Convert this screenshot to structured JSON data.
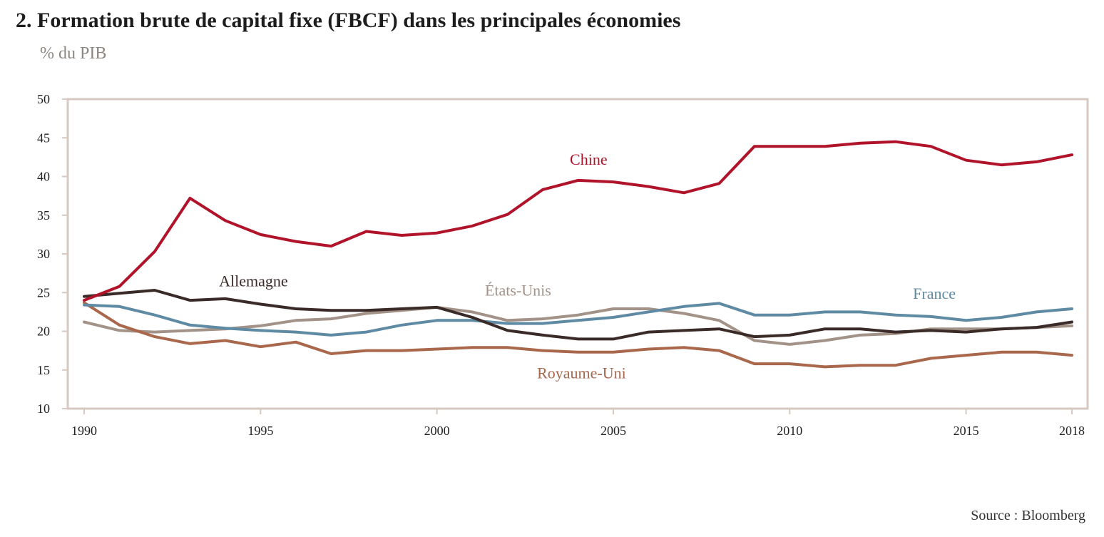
{
  "title": "2. Formation brute de capital fixe (FBCF) dans les principales économies",
  "subtitle": "% du PIB",
  "source": "Source : Bloomberg",
  "chart_data": {
    "type": "line",
    "ylim": [
      10,
      50
    ],
    "yticks": [
      10,
      15,
      20,
      25,
      30,
      35,
      40,
      45,
      50
    ],
    "xlim": [
      1990,
      2018
    ],
    "xticks": [
      1990,
      1995,
      2000,
      2005,
      2010,
      2015,
      2018
    ],
    "grid": false,
    "x": [
      1990,
      1991,
      1992,
      1993,
      1994,
      1995,
      1996,
      1997,
      1998,
      1999,
      2000,
      2001,
      2002,
      2003,
      2004,
      2005,
      2006,
      2007,
      2008,
      2009,
      2010,
      2011,
      2012,
      2013,
      2014,
      2015,
      2016,
      2017,
      2018
    ],
    "series": [
      {
        "name": "Chine",
        "color": "#b0132a",
        "values": [
          24.0,
          25.8,
          30.3,
          37.2,
          34.3,
          32.5,
          31.6,
          31.0,
          32.9,
          32.4,
          32.7,
          33.6,
          35.1,
          38.3,
          39.5,
          39.3,
          38.7,
          37.9,
          39.1,
          43.9,
          43.9,
          43.9,
          44.3,
          44.5,
          43.9,
          42.1,
          41.5,
          41.9,
          42.8
        ]
      },
      {
        "name": "Allemagne",
        "color": "#3a2a28",
        "values": [
          24.5,
          24.9,
          25.3,
          24.0,
          24.2,
          23.5,
          22.9,
          22.7,
          22.7,
          22.9,
          23.1,
          21.8,
          20.1,
          19.5,
          19.0,
          19.0,
          19.9,
          20.1,
          20.3,
          19.3,
          19.5,
          20.3,
          20.3,
          19.9,
          20.1,
          19.9,
          20.3,
          20.5,
          21.2
        ]
      },
      {
        "name": "États-Unis",
        "color": "#a39288",
        "values": [
          21.2,
          20.1,
          19.9,
          20.1,
          20.3,
          20.7,
          21.4,
          21.6,
          22.3,
          22.7,
          23.1,
          22.5,
          21.4,
          21.6,
          22.1,
          22.9,
          22.9,
          22.3,
          21.4,
          18.8,
          18.3,
          18.8,
          19.5,
          19.7,
          20.3,
          20.3,
          20.3,
          20.5,
          20.7
        ]
      },
      {
        "name": "France",
        "color": "#5f8aa3",
        "values": [
          23.4,
          23.2,
          22.1,
          20.8,
          20.4,
          20.1,
          19.9,
          19.5,
          19.9,
          20.8,
          21.4,
          21.4,
          21.0,
          21.0,
          21.4,
          21.8,
          22.5,
          23.2,
          23.6,
          22.1,
          22.1,
          22.5,
          22.5,
          22.1,
          21.9,
          21.4,
          21.8,
          22.5,
          22.9
        ]
      },
      {
        "name": "Royaume-Uni",
        "color": "#a9674c",
        "values": [
          23.7,
          20.8,
          19.3,
          18.4,
          18.8,
          18.0,
          18.6,
          17.1,
          17.5,
          17.5,
          17.7,
          17.9,
          17.9,
          17.5,
          17.3,
          17.3,
          17.7,
          17.9,
          17.5,
          15.8,
          15.8,
          15.4,
          15.6,
          15.6,
          16.5,
          16.9,
          17.3,
          17.3,
          16.9
        ]
      }
    ],
    "annotations": [
      {
        "series": "Chine",
        "text": "Chine",
        "x": 2004.3,
        "y": 41.5
      },
      {
        "series": "Allemagne",
        "text": "Allemagne",
        "x": 1994.8,
        "y": 25.8
      },
      {
        "series": "États-Unis",
        "text": "États-Unis",
        "x": 2002.3,
        "y": 24.6
      },
      {
        "series": "France",
        "text": "France",
        "x": 2014.1,
        "y": 24.2
      },
      {
        "series": "Royaume-Uni",
        "text": "Royaume-Uni",
        "x": 2004.1,
        "y": 13.9
      }
    ]
  }
}
